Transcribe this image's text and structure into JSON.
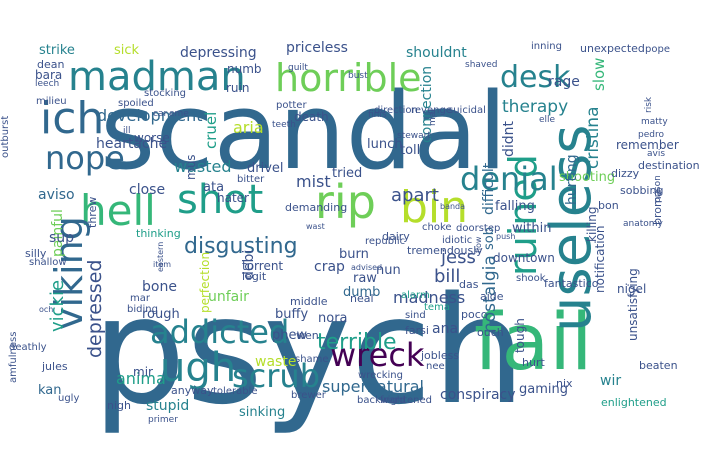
{
  "palette": [
    "#3b528b",
    "#31688e",
    "#26828e",
    "#1f9e89",
    "#35b779",
    "#6ece58",
    "#b5de2b",
    "#fde725",
    "#440154",
    "#482878"
  ],
  "words": [
    {
      "text": "psych",
      "c": "#31688e"
    },
    {
      "text": "scandal",
      "c": "#31688e"
    },
    {
      "text": "fail",
      "c": "#35b779"
    },
    {
      "text": "useless",
      "c": "#26828e"
    },
    {
      "text": "ruined",
      "c": "#1f9e89"
    },
    {
      "text": "horrible",
      "c": "#6ece58"
    },
    {
      "text": "madman",
      "c": "#26828e"
    },
    {
      "text": "ich",
      "c": "#31688e"
    },
    {
      "text": "nope",
      "c": "#31688e"
    },
    {
      "text": "hell",
      "c": "#35b779"
    },
    {
      "text": "shot",
      "c": "#1f9e89"
    },
    {
      "text": "rip",
      "c": "#6ece58"
    },
    {
      "text": "bin",
      "c": "#b5de2b"
    },
    {
      "text": "desk",
      "c": "#26828e"
    },
    {
      "text": "denial",
      "c": "#26828e"
    },
    {
      "text": "wreck",
      "c": "#440154"
    },
    {
      "text": "ugh",
      "c": "#26828e"
    },
    {
      "text": "scrub",
      "c": "#26828e"
    },
    {
      "text": "addicted",
      "c": "#26828e"
    },
    {
      "text": "viking",
      "c": "#31688e"
    },
    {
      "text": "disgusting",
      "c": "#31688e"
    },
    {
      "text": "terrible",
      "c": "#1f9e89"
    },
    {
      "text": "supernatural",
      "c": "#31688e"
    },
    {
      "text": "depressed",
      "c": "#3b528b"
    },
    {
      "text": "vickie",
      "c": "#1f9e89"
    },
    {
      "text": "jess",
      "c": "#3b528b"
    },
    {
      "text": "bill",
      "c": "#3b528b"
    },
    {
      "text": "apart",
      "c": "#3b528b"
    },
    {
      "text": "madness",
      "c": "#3b528b"
    },
    {
      "text": "nostalgia",
      "c": "#31688e"
    },
    {
      "text": "therapy",
      "c": "#26828e"
    },
    {
      "text": "development",
      "c": "#31688e"
    },
    {
      "text": "heartache",
      "c": "#3b528b"
    },
    {
      "text": "wasted",
      "c": "#26828e"
    },
    {
      "text": "mist",
      "c": "#3b528b"
    },
    {
      "text": "aria",
      "c": "#b5de2b"
    },
    {
      "text": "cruel",
      "c": "#1f9e89"
    },
    {
      "text": "shooting",
      "c": "#6ece58"
    },
    {
      "text": "hurting",
      "c": "#31688e"
    },
    {
      "text": "cristina",
      "c": "#26828e"
    },
    {
      "text": "slow",
      "c": "#35b779"
    },
    {
      "text": "difficult",
      "c": "#31688e"
    },
    {
      "text": "didnt",
      "c": "#3b528b"
    },
    {
      "text": "shouldnt",
      "c": "#26828e"
    },
    {
      "text": "priceless",
      "c": "#3b528b"
    },
    {
      "text": "depressing",
      "c": "#3b528b"
    },
    {
      "text": "strike",
      "c": "#26828e"
    },
    {
      "text": "sick",
      "c": "#b5de2b"
    },
    {
      "text": "rage",
      "c": "#3b528b"
    },
    {
      "text": "anima",
      "c": "#1f9e89"
    },
    {
      "text": "stupid",
      "c": "#26828e"
    },
    {
      "text": "sinking",
      "c": "#26828e"
    },
    {
      "text": "waste",
      "c": "#b5de2b"
    },
    {
      "text": "buffy",
      "c": "#3b528b"
    },
    {
      "text": "phew",
      "c": "#3b528b"
    },
    {
      "text": "nora",
      "c": "#3b528b"
    },
    {
      "text": "ana",
      "c": "#3b528b"
    },
    {
      "text": "wir",
      "c": "#26828e"
    },
    {
      "text": "conspiracy",
      "c": "#3b528b"
    },
    {
      "text": "gaming",
      "c": "#3b528b"
    },
    {
      "text": "kan",
      "c": "#31688e"
    },
    {
      "text": "close",
      "c": "#3b528b"
    },
    {
      "text": "aviso",
      "c": "#31688e"
    },
    {
      "text": "painful",
      "c": "#6ece58"
    },
    {
      "text": "sup",
      "c": "#3b528b"
    },
    {
      "text": "unfair",
      "c": "#6ece58"
    },
    {
      "text": "bone",
      "c": "#3b528b"
    },
    {
      "text": "rough",
      "c": "#3b528b"
    },
    {
      "text": "perfection",
      "c": "#b5de2b"
    },
    {
      "text": "debi",
      "c": "#3b528b"
    },
    {
      "text": "crap",
      "c": "#3b528b"
    },
    {
      "text": "burn",
      "c": "#3b528b"
    },
    {
      "text": "dumb",
      "c": "#31688e"
    },
    {
      "text": "raw",
      "c": "#3b528b"
    },
    {
      "text": "nun",
      "c": "#3b528b"
    },
    {
      "text": "downtown",
      "c": "#3b528b"
    },
    {
      "text": "falling",
      "c": "#3b528b"
    },
    {
      "text": "sob",
      "c": "#31688e"
    },
    {
      "text": "within",
      "c": "#3b528b"
    },
    {
      "text": "connection",
      "c": "#26828e"
    },
    {
      "text": "toll",
      "c": "#3b528b"
    },
    {
      "text": "lunch",
      "c": "#3b528b"
    },
    {
      "text": "tried",
      "c": "#3b528b"
    },
    {
      "text": "drivel",
      "c": "#3b528b"
    },
    {
      "text": "ata",
      "c": "#3b528b"
    },
    {
      "text": "mus",
      "c": "#3b528b"
    },
    {
      "text": "numb",
      "c": "#3b528b"
    },
    {
      "text": "ruin",
      "c": "#3b528b"
    },
    {
      "text": "bara",
      "c": "#3b528b"
    },
    {
      "text": "dean",
      "c": "#3b528b"
    },
    {
      "text": "potter",
      "c": "#3b528b"
    },
    {
      "text": "direction",
      "c": "#3b528b"
    },
    {
      "text": "revenge",
      "c": "#3b528b"
    },
    {
      "text": "suicidal",
      "c": "#3b528b"
    },
    {
      "text": "death",
      "c": "#3b528b"
    },
    {
      "text": "hater",
      "c": "#3b528b"
    },
    {
      "text": "worse",
      "c": "#3b528b"
    },
    {
      "text": "unexpected",
      "c": "#3b528b"
    },
    {
      "text": "pope",
      "c": "#3b528b"
    },
    {
      "text": "inning",
      "c": "#3b528b"
    },
    {
      "text": "remember",
      "c": "#3b528b"
    },
    {
      "text": "destination",
      "c": "#3b528b"
    },
    {
      "text": "bon",
      "c": "#3b528b"
    },
    {
      "text": "dizzy",
      "c": "#3b528b"
    },
    {
      "text": "sobbing",
      "c": "#3b528b"
    },
    {
      "text": "broma",
      "c": "#3b528b"
    },
    {
      "text": "fantastico",
      "c": "#3b528b"
    },
    {
      "text": "notification",
      "c": "#3b528b"
    },
    {
      "text": "killing",
      "c": "#3b528b"
    },
    {
      "text": "nigel",
      "c": "#3b528b"
    },
    {
      "text": "unsatisfying",
      "c": "#3b528b"
    },
    {
      "text": "beaten",
      "c": "#3b528b"
    },
    {
      "text": "enlightened",
      "c": "#1f9e89"
    },
    {
      "text": "tough",
      "c": "#3b528b"
    },
    {
      "text": "nix",
      "c": "#3b528b"
    },
    {
      "text": "hurt",
      "c": "#3b528b"
    },
    {
      "text": "aide",
      "c": "#3b528b"
    },
    {
      "text": "das",
      "c": "#3b528b"
    },
    {
      "text": "poco",
      "c": "#3b528b"
    },
    {
      "text": "ouch",
      "c": "#3b528b"
    },
    {
      "text": "shook",
      "c": "#3b528b"
    },
    {
      "text": "jobless",
      "c": "#3b528b"
    },
    {
      "text": "nee",
      "c": "#3b528b"
    },
    {
      "text": "farsi",
      "c": "#3b528b"
    },
    {
      "text": "sind",
      "c": "#3b528b"
    },
    {
      "text": "tema",
      "c": "#1f9e89"
    },
    {
      "text": "alarm",
      "c": "#1f9e89"
    },
    {
      "text": "neal",
      "c": "#3b528b"
    },
    {
      "text": "wen",
      "c": "#3b528b"
    },
    {
      "text": "shame",
      "c": "#3b528b"
    },
    {
      "text": "torrent",
      "c": "#3b528b"
    },
    {
      "text": "middle",
      "c": "#3b528b"
    },
    {
      "text": "legit",
      "c": "#3b528b"
    },
    {
      "text": "mar",
      "c": "#3b528b"
    },
    {
      "text": "biding",
      "c": "#3b528b"
    },
    {
      "text": "mir",
      "c": "#3b528b"
    },
    {
      "text": "nigh",
      "c": "#3b528b"
    },
    {
      "text": "anyway",
      "c": "#3b528b"
    },
    {
      "text": "tolerable",
      "c": "#3b528b"
    },
    {
      "text": "brewer",
      "c": "#3b528b"
    },
    {
      "text": "backward",
      "c": "#3b528b"
    },
    {
      "text": "frightened",
      "c": "#3b528b"
    },
    {
      "text": "wrecking",
      "c": "#3b528b"
    },
    {
      "text": "primer",
      "c": "#3b528b"
    },
    {
      "text": "ugly",
      "c": "#3b528b"
    },
    {
      "text": "amfulness",
      "c": "#3b528b"
    },
    {
      "text": "jules",
      "c": "#3b528b"
    },
    {
      "text": "deathly",
      "c": "#3b528b"
    },
    {
      "text": "silly",
      "c": "#3b528b"
    },
    {
      "text": "shallow",
      "c": "#3b528b"
    },
    {
      "text": "threw",
      "c": "#3b528b"
    },
    {
      "text": "thinking",
      "c": "#1f9e89"
    },
    {
      "text": "tremendously",
      "c": "#3b528b"
    },
    {
      "text": "dairy",
      "c": "#3b528b"
    },
    {
      "text": "idiotic",
      "c": "#3b528b"
    },
    {
      "text": "republic",
      "c": "#3b528b"
    },
    {
      "text": "choke",
      "c": "#3b528b"
    },
    {
      "text": "doorstep",
      "c": "#3b528b"
    },
    {
      "text": "demanding",
      "c": "#3b528b"
    },
    {
      "text": "bitter",
      "c": "#3b528b"
    },
    {
      "text": "leech",
      "c": "#3b528b"
    },
    {
      "text": "milieu",
      "c": "#3b528b"
    },
    {
      "text": "stocking",
      "c": "#3b528b"
    },
    {
      "text": "spoiled",
      "c": "#3b528b"
    },
    {
      "text": "outburst",
      "c": "#3b528b"
    },
    {
      "text": "ill",
      "c": "#3b528b"
    },
    {
      "text": "car",
      "c": "#3b528b"
    },
    {
      "text": "eme",
      "c": "#3b528b"
    },
    {
      "text": "teeth",
      "c": "#3b528b"
    },
    {
      "text": "guilt",
      "c": "#3b528b"
    },
    {
      "text": "bust",
      "c": "#3b528b"
    },
    {
      "text": "finis",
      "c": "#3b528b"
    },
    {
      "text": "shaved",
      "c": "#3b528b"
    },
    {
      "text": "stewart",
      "c": "#3b528b"
    },
    {
      "text": "mal",
      "c": "#3b528b"
    },
    {
      "text": "elle",
      "c": "#3b528b"
    },
    {
      "text": "pedro",
      "c": "#3b528b"
    },
    {
      "text": "risk",
      "c": "#3b528b"
    },
    {
      "text": "matty",
      "c": "#3b528b"
    },
    {
      "text": "avis",
      "c": "#3b528b"
    },
    {
      "text": "prison",
      "c": "#3b528b"
    },
    {
      "text": "anatomy",
      "c": "#3b528b"
    },
    {
      "text": "och",
      "c": "#3b528b"
    },
    {
      "text": "item",
      "c": "#3b528b"
    },
    {
      "text": "eastern",
      "c": "#3b528b"
    },
    {
      "text": "banda",
      "c": "#3b528b"
    },
    {
      "text": "flow",
      "c": "#3b528b"
    },
    {
      "text": "wast",
      "c": "#3b528b"
    },
    {
      "text": "push",
      "c": "#3b528b"
    },
    {
      "text": "advised",
      "c": "#3b528b"
    },
    {
      "text": "falling",
      "c": "#3b528b"
    }
  ]
}
